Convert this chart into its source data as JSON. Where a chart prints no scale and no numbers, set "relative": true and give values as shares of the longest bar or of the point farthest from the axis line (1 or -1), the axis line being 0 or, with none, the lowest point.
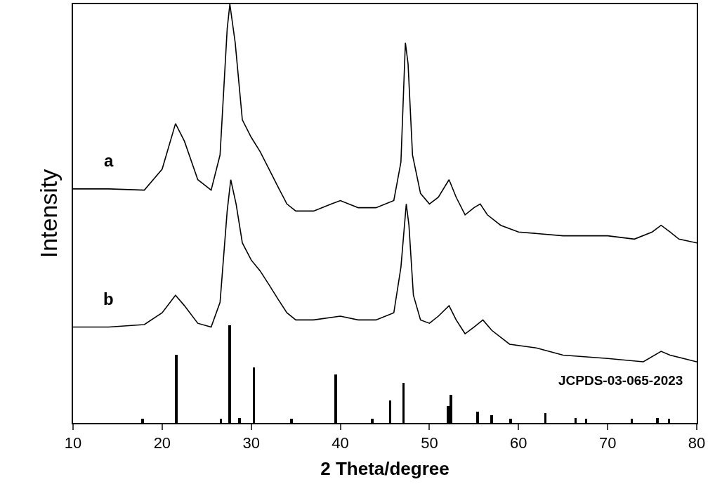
{
  "chart_data": {
    "type": "line",
    "relative": true,
    "xlabel": "2 Theta/degree",
    "ylabel": "Intensity",
    "xlim": [
      10,
      80
    ],
    "xticks": [
      10,
      20,
      30,
      40,
      50,
      60,
      70,
      80
    ],
    "tick_labels": "x",
    "legend": false,
    "marker": "none",
    "line_style": "solid",
    "series": [
      {
        "name": "a",
        "color": "#000000",
        "x": [
          10,
          14,
          18,
          20,
          21.5,
          22.5,
          24,
          25.5,
          26.5,
          27.3,
          27.6,
          28.2,
          29,
          30,
          31,
          32,
          33,
          34,
          35,
          37,
          39,
          40,
          42,
          44,
          46,
          46.8,
          47.3,
          47.6,
          48.1,
          49,
          50,
          51,
          52.2,
          53,
          54,
          55,
          55.7,
          56.5,
          58,
          60,
          65,
          70,
          73,
          75,
          76,
          77,
          78,
          80
        ],
        "values": [
          0.559,
          0.559,
          0.556,
          0.606,
          0.715,
          0.673,
          0.581,
          0.556,
          0.64,
          0.941,
          1.0,
          0.908,
          0.724,
          0.682,
          0.648,
          0.606,
          0.564,
          0.523,
          0.506,
          0.506,
          0.523,
          0.531,
          0.514,
          0.514,
          0.531,
          0.623,
          0.908,
          0.858,
          0.64,
          0.548,
          0.523,
          0.539,
          0.581,
          0.539,
          0.497,
          0.514,
          0.523,
          0.497,
          0.472,
          0.456,
          0.447,
          0.447,
          0.439,
          0.456,
          0.472,
          0.456,
          0.439,
          0.43
        ]
      },
      {
        "name": "b",
        "color": "#000000",
        "x": [
          10,
          14,
          18,
          20,
          21.5,
          22.5,
          24,
          25.5,
          26.5,
          27.3,
          27.7,
          28.3,
          29,
          30,
          31,
          32,
          33,
          34,
          35,
          37,
          40,
          42,
          44,
          46,
          46.8,
          47.4,
          47.7,
          48.2,
          49,
          50,
          51,
          52.2,
          53,
          54,
          55,
          56,
          57,
          59,
          62,
          65,
          70,
          74,
          76,
          77,
          80
        ],
        "values": [
          0.229,
          0.229,
          0.235,
          0.263,
          0.305,
          0.28,
          0.238,
          0.229,
          0.288,
          0.506,
          0.581,
          0.523,
          0.43,
          0.389,
          0.363,
          0.33,
          0.296,
          0.263,
          0.246,
          0.246,
          0.255,
          0.246,
          0.246,
          0.263,
          0.372,
          0.523,
          0.472,
          0.305,
          0.246,
          0.238,
          0.255,
          0.28,
          0.246,
          0.213,
          0.229,
          0.246,
          0.221,
          0.188,
          0.179,
          0.162,
          0.154,
          0.146,
          0.171,
          0.162,
          0.146
        ]
      },
      {
        "type": "bar",
        "color": "#000000",
        "x": [
          17.8,
          21.6,
          26.6,
          27.6,
          28.7,
          30.3,
          34.5,
          39.5,
          43.6,
          45.6,
          47.1,
          52.1,
          52.4,
          55.4,
          57.0,
          59.1,
          63.0,
          66.4,
          67.6,
          72.7,
          75.6,
          76.9
        ],
        "values": [
          0.01,
          0.162,
          0.01,
          0.233,
          0.012,
          0.132,
          0.01,
          0.116,
          0.01,
          0.054,
          0.095,
          0.04,
          0.067,
          0.027,
          0.018,
          0.01,
          0.023,
          0.012,
          0.01,
          0.01,
          0.012,
          0.01
        ]
      }
    ],
    "annotations": [
      "JCPDS-03-065-2023"
    ]
  }
}
